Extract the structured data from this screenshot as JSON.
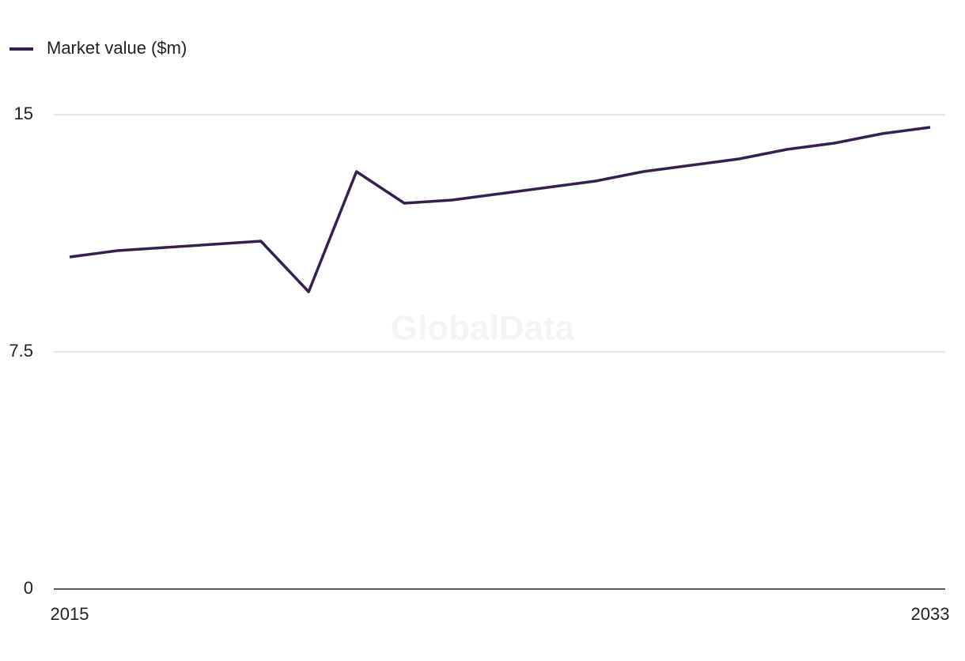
{
  "chart_data": {
    "type": "line",
    "watermark": "GlobalData",
    "x": [
      2015,
      2016,
      2017,
      2018,
      2019,
      2020,
      2021,
      2022,
      2023,
      2024,
      2025,
      2026,
      2027,
      2028,
      2029,
      2030,
      2031,
      2032,
      2033
    ],
    "series": [
      {
        "name": "Market value ($m)",
        "color": "#35204f",
        "values": [
          10.5,
          10.7,
          10.8,
          10.9,
          11.0,
          9.4,
          13.2,
          12.2,
          12.3,
          12.5,
          12.7,
          12.9,
          13.2,
          13.4,
          13.6,
          13.9,
          14.1,
          14.4,
          14.6
        ]
      }
    ],
    "xlim": [
      2015,
      2033
    ],
    "xticks": [
      2015,
      2033
    ],
    "ylim": [
      0,
      15
    ],
    "yticks": [
      0,
      7.5,
      15
    ],
    "grid": true,
    "legend": "top-left"
  }
}
